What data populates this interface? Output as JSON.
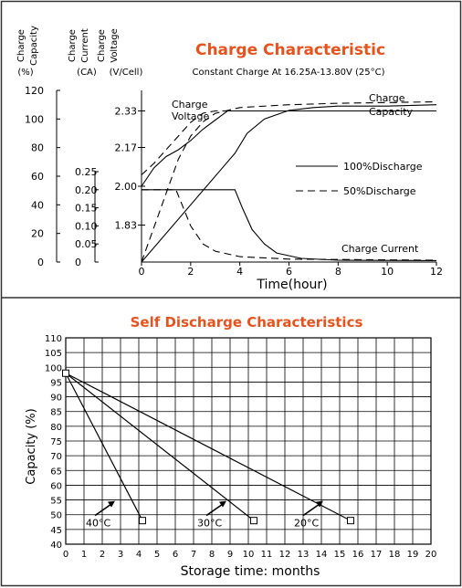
{
  "colors": {
    "accent": "#e8521c",
    "ink": "#000000",
    "border": "#333333"
  },
  "chart_data": [
    {
      "type": "line",
      "title": "Charge Characteristic",
      "subtitle": "Constant Charge At 16.25A-13.80V  (25°C)",
      "xlabel": "Time(hour)",
      "xlim": [
        0,
        12
      ],
      "x_ticks": [
        0,
        2,
        4,
        6,
        8,
        10,
        12
      ],
      "axes": [
        {
          "header": [
            "Charge",
            "Capacity"
          ],
          "unit": "(%)",
          "ticks": [
            0,
            20,
            40,
            60,
            80,
            100,
            120
          ],
          "range": [
            0,
            120
          ]
        },
        {
          "header": [
            "Charge",
            "Current"
          ],
          "unit": "(CA)",
          "ticks": [
            0,
            0.05,
            0.1,
            0.15,
            0.2,
            0.25
          ],
          "tick_labels": [
            "0",
            "0.05",
            "0.10",
            "0.15",
            "0.20",
            "0.25"
          ],
          "range": [
            0,
            0.25
          ]
        },
        {
          "header": [
            "Charge",
            "Voltage"
          ],
          "unit": "(V/Cell)",
          "ticks": [
            1.83,
            2.0,
            2.17,
            2.33
          ],
          "tick_labels": [
            "1.83",
            "2.00",
            "2.17",
            "2.33"
          ],
          "range": [
            1.7,
            2.4
          ]
        }
      ],
      "legend": {
        "solid": "100%Discharge",
        "dashed": "50%Discharge"
      },
      "annotations": {
        "voltage": [
          "Charge",
          "Voltage"
        ],
        "capacity": [
          "Charge",
          "Capacity"
        ],
        "current": "Charge Current"
      },
      "series": [
        {
          "name": "Charge Voltage",
          "axis": "voltage",
          "discharge": "100%",
          "points": [
            [
              0,
              2.0
            ],
            [
              0.5,
              2.08
            ],
            [
              1,
              2.13
            ],
            [
              1.5,
              2.16
            ],
            [
              2,
              2.2
            ],
            [
              2.5,
              2.25
            ],
            [
              3,
              2.29
            ],
            [
              3.5,
              2.33
            ],
            [
              4,
              2.33
            ],
            [
              12,
              2.33
            ]
          ]
        },
        {
          "name": "Charge Voltage",
          "axis": "voltage",
          "discharge": "50%",
          "points": [
            [
              0,
              2.05
            ],
            [
              0.5,
              2.1
            ],
            [
              1,
              2.16
            ],
            [
              1.5,
              2.22
            ],
            [
              2,
              2.28
            ],
            [
              2.5,
              2.32
            ],
            [
              3,
              2.33
            ],
            [
              12,
              2.33
            ]
          ]
        },
        {
          "name": "Charge Capacity",
          "axis": "capacity",
          "discharge": "100%",
          "points": [
            [
              0,
              0
            ],
            [
              3.8,
              76
            ],
            [
              4.3,
              90
            ],
            [
              5,
              100
            ],
            [
              6,
              106
            ],
            [
              7,
              108
            ],
            [
              8,
              109
            ],
            [
              10,
              109
            ],
            [
              12,
              110
            ]
          ]
        },
        {
          "name": "Charge Capacity",
          "axis": "capacity",
          "discharge": "50%",
          "points": [
            [
              0,
              0
            ],
            [
              1.5,
              72
            ],
            [
              2,
              88
            ],
            [
              2.5,
              98
            ],
            [
              3,
              104
            ],
            [
              4,
              108
            ],
            [
              6,
              110
            ],
            [
              8,
              111
            ],
            [
              12,
              112
            ]
          ]
        },
        {
          "name": "Charge Current",
          "axis": "current",
          "discharge": "100%",
          "points": [
            [
              0,
              0.2
            ],
            [
              3.8,
              0.2
            ],
            [
              4.1,
              0.15
            ],
            [
              4.5,
              0.09
            ],
            [
              5,
              0.05
            ],
            [
              5.5,
              0.025
            ],
            [
              6.5,
              0.01
            ],
            [
              8,
              0.005
            ],
            [
              12,
              0.004
            ]
          ]
        },
        {
          "name": "Charge Current",
          "axis": "current",
          "discharge": "50%",
          "points": [
            [
              0,
              0.2
            ],
            [
              1.4,
              0.2
            ],
            [
              1.7,
              0.15
            ],
            [
              2,
              0.1
            ],
            [
              2.5,
              0.05
            ],
            [
              3,
              0.03
            ],
            [
              4,
              0.015
            ],
            [
              6,
              0.008
            ],
            [
              12,
              0.005
            ]
          ]
        }
      ]
    },
    {
      "type": "line",
      "title": "Self Discharge Characteristics",
      "xlabel": "Storage time: months",
      "ylabel": "Capacity (%)",
      "xlim": [
        0,
        20
      ],
      "ylim": [
        40,
        110
      ],
      "x_ticks": [
        0,
        1,
        2,
        3,
        4,
        5,
        6,
        7,
        8,
        9,
        10,
        11,
        12,
        13,
        14,
        15,
        16,
        17,
        18,
        19,
        20
      ],
      "y_ticks": [
        40,
        45,
        50,
        55,
        60,
        65,
        70,
        75,
        80,
        85,
        90,
        95,
        100,
        105,
        110
      ],
      "grid": true,
      "series": [
        {
          "name": "40°C",
          "points": [
            [
              0,
              98
            ],
            [
              4.2,
              48
            ]
          ]
        },
        {
          "name": "30°C",
          "points": [
            [
              0,
              98
            ],
            [
              10.3,
              48
            ]
          ]
        },
        {
          "name": "20°C",
          "points": [
            [
              0,
              98
            ],
            [
              15.6,
              48
            ]
          ]
        }
      ]
    }
  ]
}
